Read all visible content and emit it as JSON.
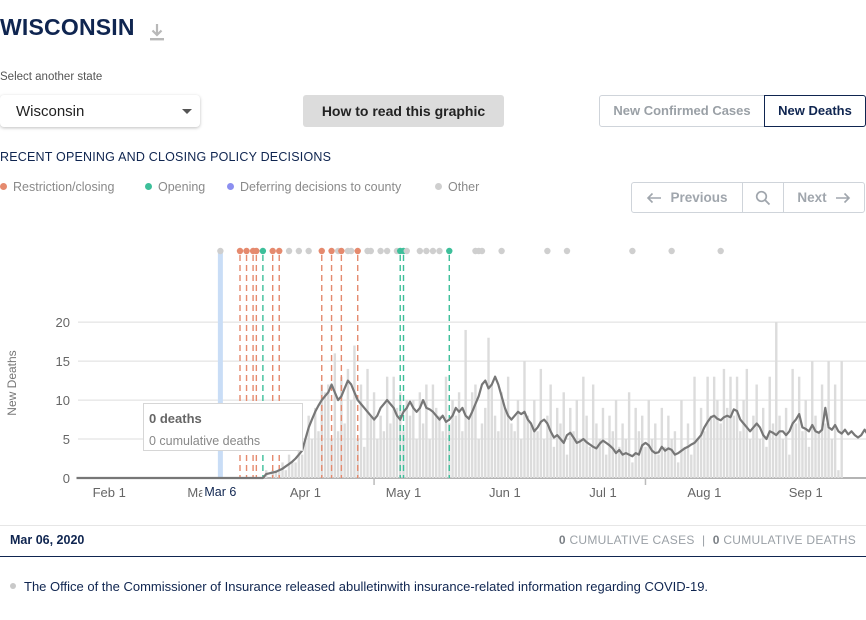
{
  "header": {
    "title": "WISCONSIN"
  },
  "selector": {
    "label": "Select another state",
    "value": "Wisconsin"
  },
  "howto_button": "How to read this graphic",
  "toggle": {
    "cases": "New Confirmed Cases",
    "deaths": "New Deaths"
  },
  "policy": {
    "heading": "RECENT OPENING AND CLOSING POLICY DECISIONS",
    "legend": [
      {
        "label": "Restriction/closing",
        "color": "#e58a6e"
      },
      {
        "label": "Opening",
        "color": "#3dbf9a"
      },
      {
        "label": "Deferring decisions to county",
        "color": "#8c8ff0"
      },
      {
        "label": "Other",
        "color": "#cfcfcf"
      }
    ]
  },
  "nav": {
    "previous": "Previous",
    "next": "Next"
  },
  "tooltip": {
    "main": "0 deaths",
    "sub": "0 cumulative deaths"
  },
  "datebar": {
    "date": "Mar 06, 2020",
    "cases_value": "0",
    "cases_label": "CUMULATIVE CASES",
    "sep": "|",
    "deaths_value": "0",
    "deaths_label": "CUMULATIVE DEATHS"
  },
  "note": "The Office of the Commissioner of Insurance released abulletinwith insurance-related information regarding COVID-19.",
  "chart_data": {
    "type": "bar+line",
    "ylabel": "New Deaths",
    "ylim": [
      0,
      24
    ],
    "yticks": [
      0,
      5,
      10,
      15,
      20
    ],
    "day0": "Jan 22",
    "xticks": [
      {
        "label": "Feb 1",
        "day": 10
      },
      {
        "label": "Mar 1",
        "day": 39
      },
      {
        "label": "Apr 1",
        "day": 70
      },
      {
        "label": "May 1",
        "day": 100
      },
      {
        "label": "Jun 1",
        "day": 131
      },
      {
        "label": "Jul 1",
        "day": 161
      },
      {
        "label": "Aug 1",
        "day": 192
      },
      {
        "label": "Sep 1",
        "day": 223
      }
    ],
    "selected": {
      "label": "Mar 6",
      "day": 44
    },
    "daily": [
      0,
      0,
      0,
      0,
      0,
      0,
      0,
      0,
      0,
      0,
      0,
      0,
      0,
      0,
      0,
      0,
      0,
      0,
      0,
      0,
      0,
      0,
      0,
      0,
      0,
      0,
      0,
      0,
      0,
      0,
      0,
      0,
      0,
      0,
      0,
      0,
      0,
      0,
      0,
      0,
      0,
      0,
      0,
      0,
      0,
      0,
      0,
      0,
      0,
      0,
      0,
      0,
      0,
      0,
      0,
      0,
      0,
      0,
      1,
      0,
      1,
      1,
      1,
      2,
      1,
      3,
      2,
      2,
      4,
      3,
      5,
      8,
      5,
      9,
      6,
      12,
      11,
      12,
      5,
      16,
      6,
      13,
      7,
      14,
      10,
      17,
      5,
      12,
      4,
      14,
      8,
      11,
      5,
      8,
      6,
      13,
      7,
      13,
      9,
      11,
      6,
      10,
      8,
      10,
      5,
      11,
      7,
      12,
      5,
      12,
      9,
      8,
      6,
      13,
      7,
      10,
      8,
      11,
      6,
      19,
      8,
      11,
      12,
      5,
      7,
      9,
      18,
      12,
      8,
      6,
      11,
      9,
      13,
      7,
      6,
      10,
      5,
      15,
      8,
      7,
      10,
      6,
      14,
      5,
      8,
      12,
      4,
      9,
      7,
      11,
      3,
      9,
      6,
      10,
      5,
      13,
      8,
      4,
      12,
      7,
      5,
      9,
      3,
      8,
      6,
      10,
      4,
      7,
      5,
      11,
      2,
      9,
      6,
      8,
      4,
      10,
      5,
      7,
      3,
      9,
      4,
      8,
      5,
      6,
      2,
      10,
      4,
      7,
      3,
      13,
      5,
      9,
      6,
      13,
      8,
      13,
      10,
      7,
      14,
      9,
      13,
      8,
      13,
      6,
      10,
      14,
      5,
      8,
      12,
      5,
      9,
      4,
      13,
      7,
      20,
      8,
      5,
      9,
      3,
      14,
      7,
      13,
      6,
      10,
      4,
      15,
      8,
      6,
      12,
      7,
      15,
      5,
      12,
      1,
      15
    ],
    "avg7": [
      0,
      0,
      0,
      0,
      0,
      0,
      0,
      0,
      0,
      0,
      0,
      0,
      0,
      0,
      0,
      0,
      0,
      0,
      0,
      0,
      0,
      0,
      0,
      0,
      0,
      0,
      0,
      0,
      0,
      0,
      0,
      0,
      0,
      0,
      0,
      0,
      0,
      0,
      0,
      0,
      0,
      0,
      0,
      0,
      0,
      0,
      0,
      0,
      0,
      0,
      0,
      0,
      0,
      0,
      0,
      0,
      0,
      0,
      0.5,
      0.6,
      0.7,
      0.8,
      1,
      1.2,
      1.5,
      1.8,
      2.1,
      2.5,
      3,
      3.5,
      5,
      6.5,
      7.5,
      8.5,
      9.3,
      10,
      10.5,
      11,
      12,
      11,
      10,
      10.5,
      11.5,
      12.5,
      12,
      11,
      10,
      9.5,
      9,
      8.5,
      8,
      7.5,
      8,
      9,
      9.5,
      10,
      9.5,
      9,
      8,
      7.5,
      8.5,
      9,
      9.8,
      9,
      8.5,
      9,
      10,
      9,
      8.8,
      8.5,
      8,
      7.5,
      8,
      7.2,
      7.5,
      8,
      9,
      8.5,
      9,
      8,
      7.6,
      8.5,
      9.5,
      10.5,
      12,
      12.5,
      11.5,
      12,
      13,
      12,
      10.5,
      9,
      8,
      7.5,
      8,
      8.5,
      8.2,
      8.5,
      7.5,
      7,
      6,
      6.5,
      7.2,
      7.5,
      7,
      6,
      5.2,
      5.5,
      5,
      4.5,
      5.5,
      5.8,
      5.2,
      4.5,
      4.7,
      5,
      4.6,
      4.3,
      4,
      3.8,
      4.4,
      4.8,
      4.5,
      4.2,
      3.8,
      3.2,
      3.6,
      3,
      3.2,
      3,
      2.8,
      3.2,
      3,
      4.2,
      4.5,
      4.2,
      3.5,
      3.2,
      3.3,
      4,
      3.5,
      3.8,
      3.6,
      3,
      3.2,
      3.5,
      3.8,
      4,
      4.3,
      4.5,
      5,
      5.5,
      6.5,
      7.2,
      7.8,
      8,
      7.6,
      7.4,
      7.8,
      8,
      7.8,
      8.8,
      8.6,
      7.5,
      7,
      6.5,
      6,
      6.5,
      7,
      6.5,
      5.5,
      5,
      6,
      5.8,
      5.5,
      6,
      6,
      5.5,
      6,
      7,
      7.5,
      8.2,
      6.5,
      6.3,
      6,
      6.8,
      6,
      5.8,
      6.2,
      9,
      6.5,
      6.2,
      6.8,
      6,
      5.7,
      6.2,
      5.6,
      6,
      5.5,
      5.2,
      5.5,
      6.2,
      5.6,
      6.8,
      6.2,
      5.6,
      7,
      6.7,
      6.2,
      5.8,
      6.5,
      6.8,
      5.8,
      6
    ]
  },
  "policy_markers": [
    {
      "day": 44,
      "kind": "selected"
    },
    {
      "day": 50,
      "kind": "restriction"
    },
    {
      "day": 52,
      "kind": "restriction"
    },
    {
      "day": 54,
      "kind": "restriction"
    },
    {
      "day": 55,
      "kind": "restriction"
    },
    {
      "day": 57,
      "kind": "opening"
    },
    {
      "day": 60,
      "kind": "restriction"
    },
    {
      "day": 62,
      "kind": "restriction"
    },
    {
      "day": 65,
      "kind": "other"
    },
    {
      "day": 68,
      "kind": "other"
    },
    {
      "day": 71,
      "kind": "other"
    },
    {
      "day": 75,
      "kind": "restriction"
    },
    {
      "day": 78,
      "kind": "restriction"
    },
    {
      "day": 80,
      "kind": "other"
    },
    {
      "day": 81,
      "kind": "restriction"
    },
    {
      "day": 83,
      "kind": "other"
    },
    {
      "day": 84,
      "kind": "other"
    },
    {
      "day": 86,
      "kind": "restriction"
    },
    {
      "day": 89,
      "kind": "other"
    },
    {
      "day": 90,
      "kind": "other"
    },
    {
      "day": 93,
      "kind": "other"
    },
    {
      "day": 95,
      "kind": "other"
    },
    {
      "day": 98,
      "kind": "other"
    },
    {
      "day": 99,
      "kind": "opening"
    },
    {
      "day": 100,
      "kind": "opening"
    },
    {
      "day": 101,
      "kind": "other"
    },
    {
      "day": 105,
      "kind": "other"
    },
    {
      "day": 107,
      "kind": "other"
    },
    {
      "day": 109,
      "kind": "other"
    },
    {
      "day": 111,
      "kind": "other"
    },
    {
      "day": 114,
      "kind": "opening"
    },
    {
      "day": 122,
      "kind": "other"
    },
    {
      "day": 123,
      "kind": "other"
    },
    {
      "day": 124,
      "kind": "other"
    },
    {
      "day": 130,
      "kind": "other"
    },
    {
      "day": 144,
      "kind": "other"
    },
    {
      "day": 150,
      "kind": "other"
    },
    {
      "day": 170,
      "kind": "other"
    },
    {
      "day": 182,
      "kind": "other"
    },
    {
      "day": 197,
      "kind": "other"
    }
  ],
  "colors": {
    "restriction": "#e58a6e",
    "opening": "#3dbf9a",
    "other": "#cfcfcf",
    "selected": "#c9ddf6",
    "navy": "#0f2550"
  }
}
